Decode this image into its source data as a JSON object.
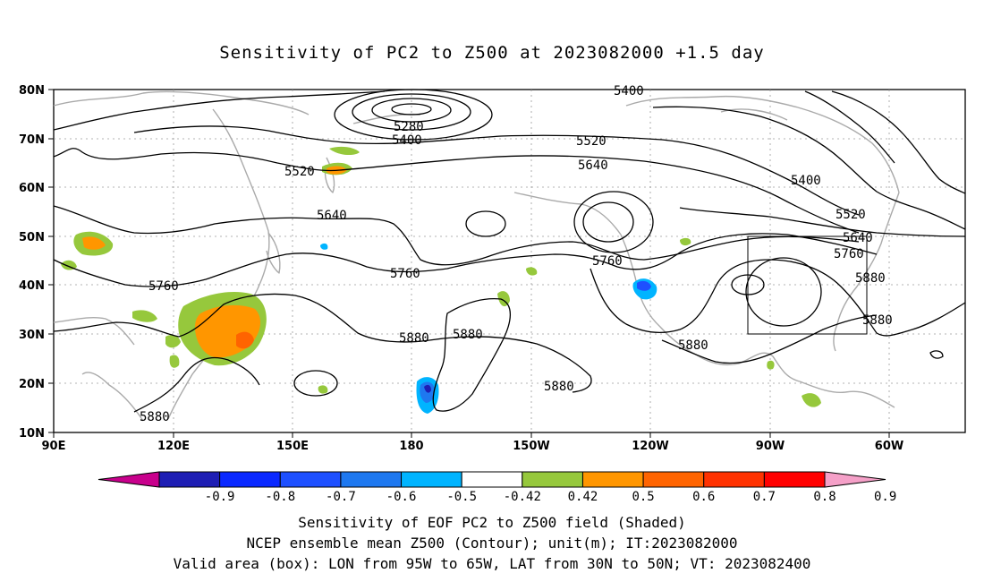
{
  "title": "Sensitivity of PC2 to Z500 at 2023082000 +1.5 day",
  "lat_ticks": [
    "80N",
    "70N",
    "60N",
    "50N",
    "40N",
    "30N",
    "20N",
    "10N"
  ],
  "lon_ticks": [
    "90E",
    "120E",
    "150E",
    "180",
    "150W",
    "120W",
    "90W",
    "60W"
  ],
  "contour_labels": [
    "5400",
    "5280",
    "5400",
    "5520",
    "5520",
    "5640",
    "5640",
    "5760",
    "5760",
    "5760",
    "5880",
    "5880",
    "5880",
    "5880",
    "5880",
    "5400",
    "5520",
    "5640",
    "5760",
    "5880",
    "5880"
  ],
  "colorbar": {
    "tick_labels": [
      "-0.9",
      "-0.8",
      "-0.7",
      "-0.6",
      "-0.5",
      "-0.42",
      "0.42",
      "0.5",
      "0.6",
      "0.7",
      "0.8",
      "0.9"
    ],
    "colors": [
      "#c8008c",
      "#1e1eb4",
      "#0a28ff",
      "#1e50ff",
      "#1e78f0",
      "#00b4ff",
      "#ffffff",
      "#96c83c",
      "#ff9600",
      "#ff6400",
      "#ff3200",
      "#ff0000",
      "#f5a0c8"
    ]
  },
  "footer": {
    "line1": "Sensitivity of EOF PC2 to Z500 field (Shaded)",
    "line2": "NCEP ensemble mean Z500 (Contour); unit(m); IT:2023082000",
    "line3": "Valid area (box): LON from 95W to 65W, LAT from 30N to 50N; VT: 2023082400"
  }
}
